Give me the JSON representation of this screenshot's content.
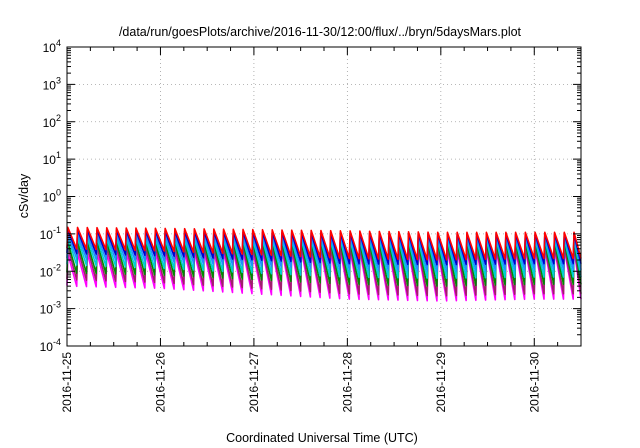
{
  "chart_data": {
    "type": "line",
    "title": "/data/run/goesPlots/archive/2016-11-30/12:00/flux/../bryn/5daysMars.plot",
    "xlabel": "Coordinated Universal Time (UTC)",
    "ylabel": "cSv/day",
    "y_scale": "log",
    "ylim": [
      0.0001,
      10000
    ],
    "xlim": [
      "2016-11-25T00:00",
      "2016-11-30T12:00"
    ],
    "grid": true,
    "x_ticks": [
      "2016-11-25",
      "2016-11-26",
      "2016-11-27",
      "2016-11-28",
      "2016-11-29",
      "2016-11-30"
    ],
    "y_ticks": [
      {
        "value": 0.0001,
        "base": "10",
        "exp": "-4"
      },
      {
        "value": 0.001,
        "base": "10",
        "exp": "-3"
      },
      {
        "value": 0.01,
        "base": "10",
        "exp": "-2"
      },
      {
        "value": 0.1,
        "base": "10",
        "exp": "-1"
      },
      {
        "value": 1,
        "base": "10",
        "exp": "0"
      },
      {
        "value": 10,
        "base": "10",
        "exp": "1"
      },
      {
        "value": 100,
        "base": "10",
        "exp": "2"
      },
      {
        "value": 1000,
        "base": "10",
        "exp": "3"
      },
      {
        "value": 10000,
        "base": "10",
        "exp": "4"
      }
    ],
    "sawtooth_period_hours": 2.5,
    "series": [
      {
        "color": "#ff00ff",
        "peak": [
          0.03,
          0.032,
          0.035,
          0.036,
          0.038,
          0.04
        ],
        "trough": [
          0.004,
          0.0035,
          0.0025,
          0.0018,
          0.0016,
          0.0018
        ]
      },
      {
        "color": "#a0206a",
        "peak": [
          0.045,
          0.045,
          0.046,
          0.046,
          0.046,
          0.048
        ],
        "trough": [
          0.006,
          0.005,
          0.0035,
          0.0025,
          0.0022,
          0.0025
        ]
      },
      {
        "color": "#008b00",
        "peak": [
          0.06,
          0.06,
          0.06,
          0.058,
          0.058,
          0.06
        ],
        "trough": [
          0.009,
          0.008,
          0.006,
          0.0045,
          0.004,
          0.0045
        ]
      },
      {
        "color": "#00ced1",
        "peak": [
          0.08,
          0.075,
          0.072,
          0.07,
          0.07,
          0.072
        ],
        "trough": [
          0.015,
          0.012,
          0.009,
          0.007,
          0.0065,
          0.007
        ]
      },
      {
        "color": "#1e90ff",
        "peak": [
          0.1,
          0.095,
          0.09,
          0.088,
          0.086,
          0.088
        ],
        "trough": [
          0.022,
          0.018,
          0.014,
          0.011,
          0.01,
          0.011
        ]
      },
      {
        "color": "#0000cd",
        "peak": [
          0.13,
          0.12,
          0.11,
          0.105,
          0.1,
          0.1
        ],
        "trough": [
          0.03,
          0.026,
          0.02,
          0.016,
          0.015,
          0.016
        ]
      },
      {
        "color": "#ff0000",
        "peak": [
          0.15,
          0.14,
          0.13,
          0.12,
          0.11,
          0.11
        ],
        "trough": [
          0.04,
          0.035,
          0.028,
          0.022,
          0.02,
          0.022
        ]
      }
    ]
  }
}
